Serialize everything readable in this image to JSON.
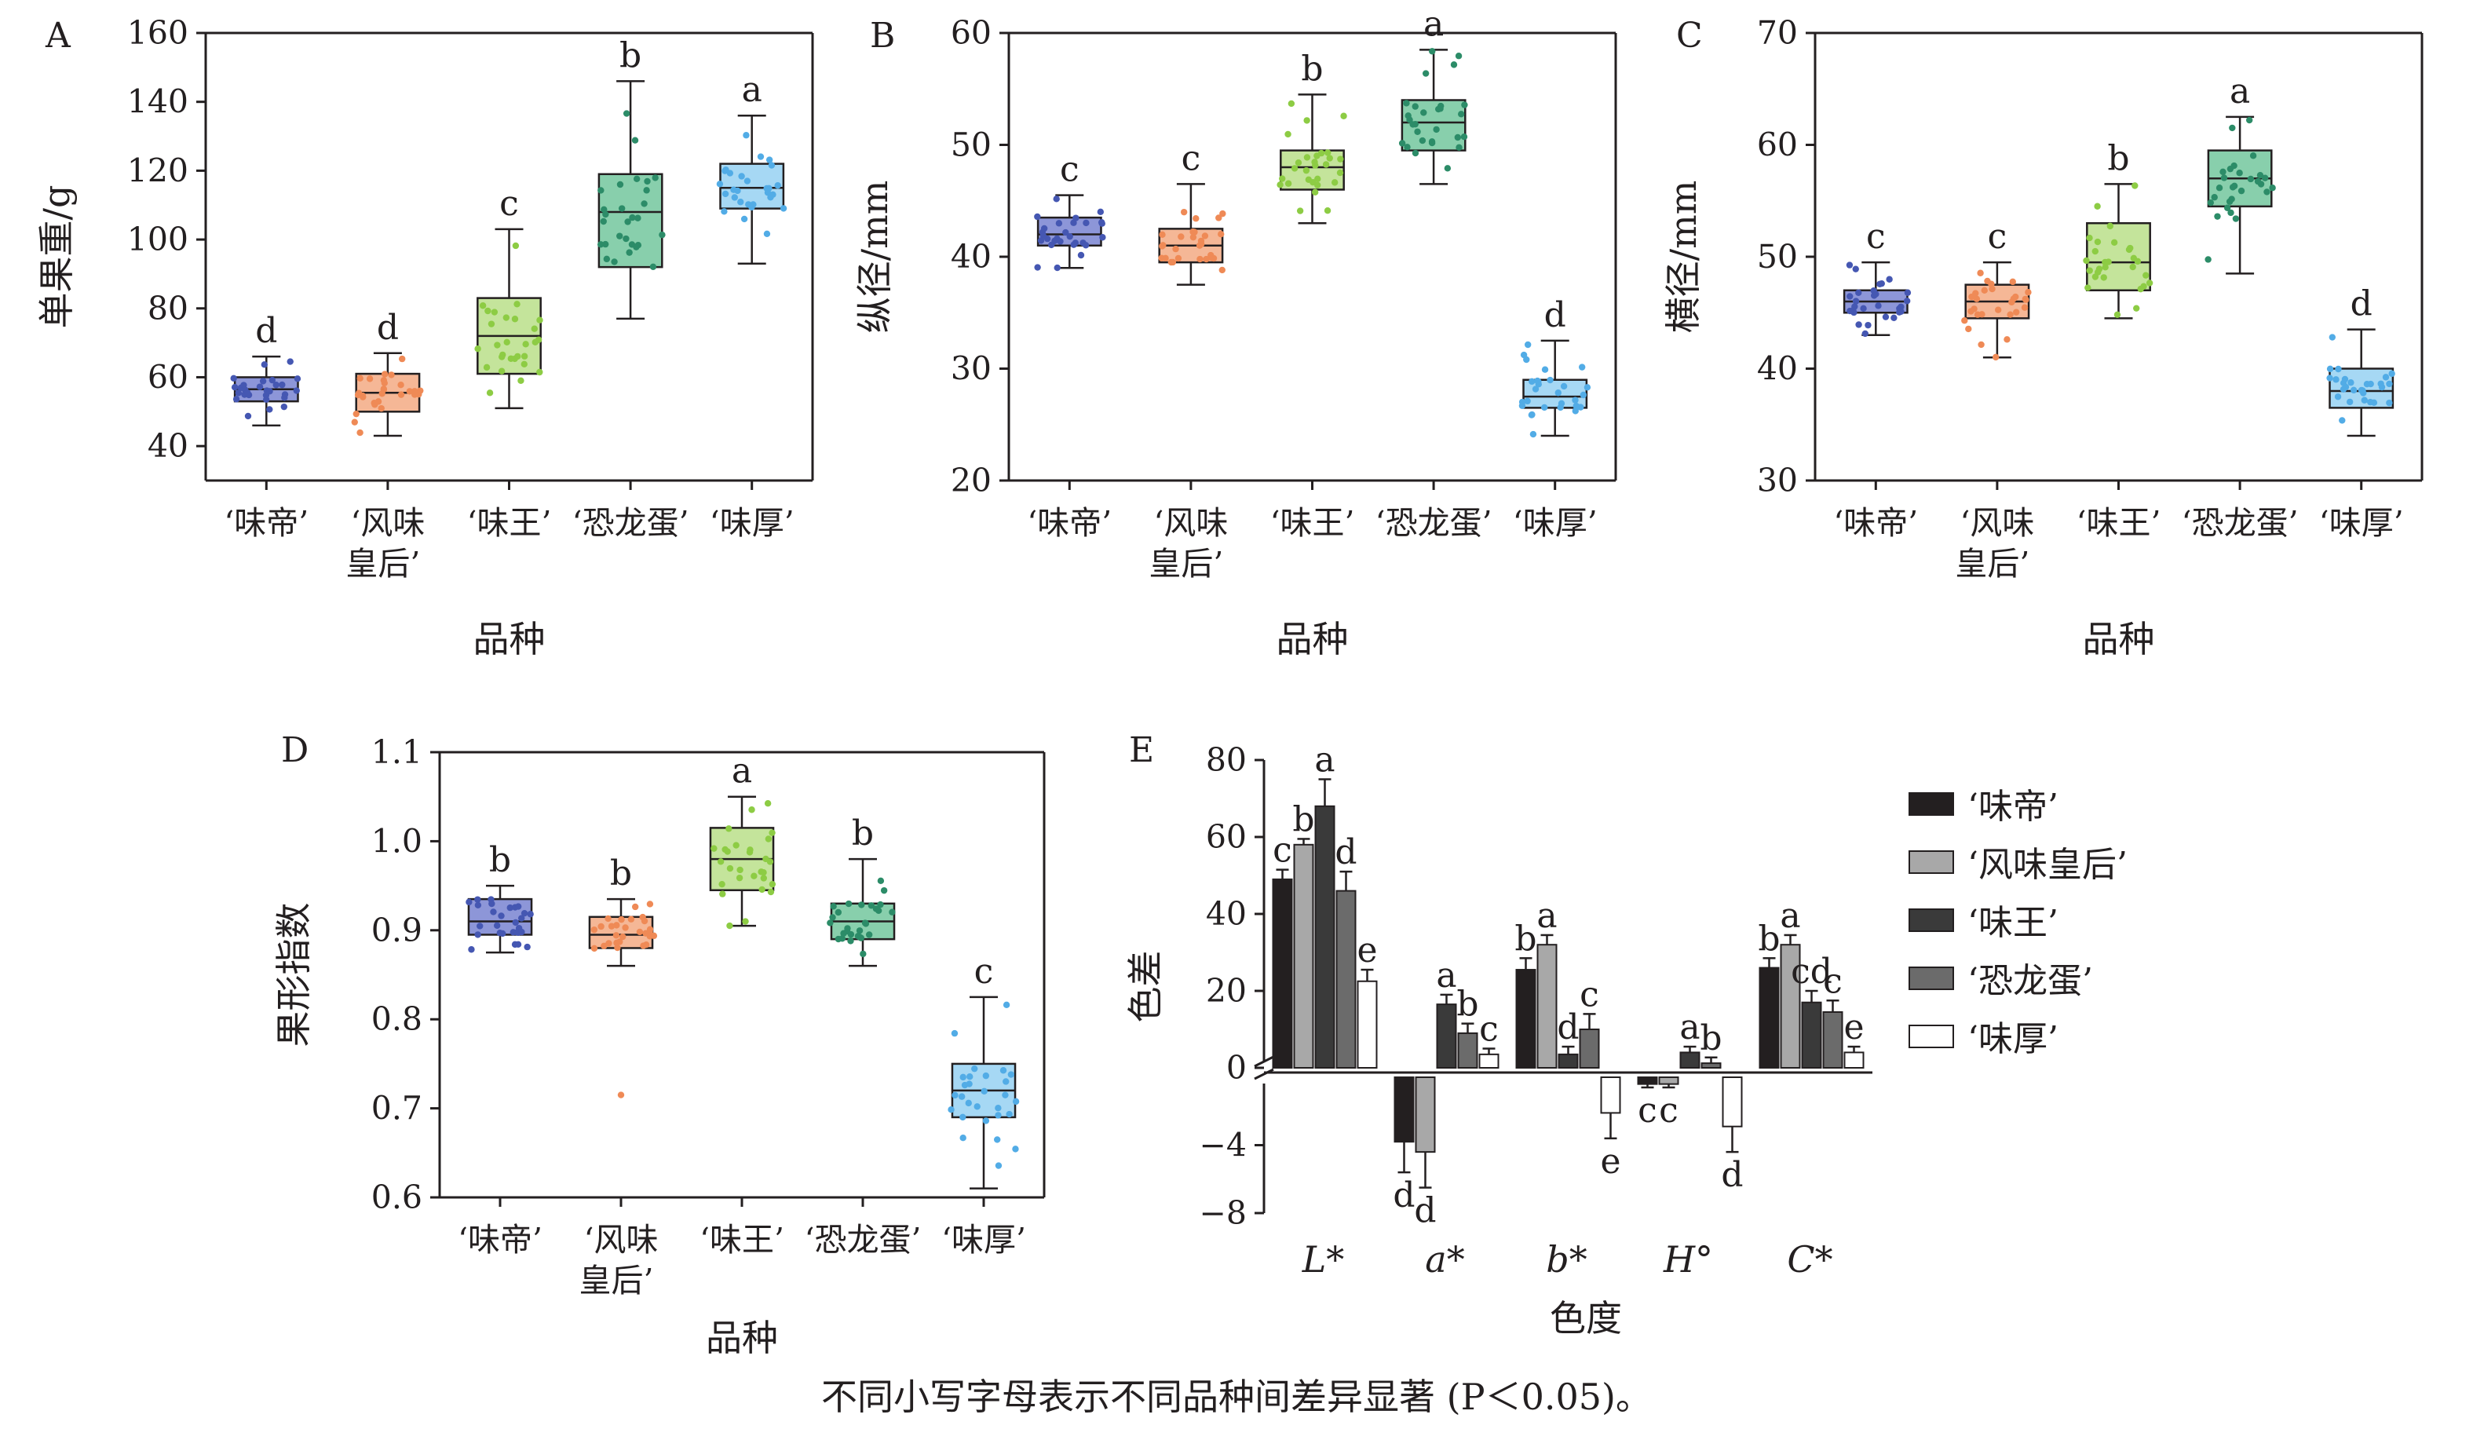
{
  "footnote": "不同小写字母表示不同品种间差异显著 (P＜0.05)。",
  "colors": {
    "box": [
      "#8d96d8",
      "#f5b796",
      "#c4e49b",
      "#88cfac",
      "#a6d8f4"
    ],
    "dot": [
      "#4557b2",
      "#ef8a56",
      "#8dcc44",
      "#2c8c68",
      "#52ace6"
    ],
    "bar": [
      "#231f20",
      "#a8a8a8",
      "#3a3a3a",
      "#6b6b6b",
      "#ffffff"
    ]
  },
  "chart_data": [
    {
      "type": "box",
      "panel": "A",
      "categories": [
        "‘味帝’",
        "‘风味\n皇后’",
        "‘味王’",
        "‘恐龙蛋’",
        "‘味厚’"
      ],
      "ylabel": "单果重/g",
      "xlabel": "品种",
      "ylim": [
        30,
        160
      ],
      "yticks": [
        40,
        60,
        80,
        100,
        120,
        140,
        160
      ],
      "boxes": [
        {
          "min": 46,
          "q1": 53,
          "median": 56.5,
          "q3": 60,
          "max": 66
        },
        {
          "min": 43,
          "q1": 50,
          "median": 55.5,
          "q3": 61,
          "max": 67
        },
        {
          "min": 51,
          "q1": 61,
          "median": 72,
          "q3": 83,
          "max": 103
        },
        {
          "min": 77,
          "q1": 92,
          "median": 108,
          "q3": 119,
          "max": 146
        },
        {
          "min": 93,
          "q1": 109,
          "median": 115,
          "q3": 122,
          "max": 136
        }
      ],
      "letters": [
        "d",
        "d",
        "c",
        "b",
        "a"
      ]
    },
    {
      "type": "box",
      "panel": "B",
      "categories": [
        "‘味帝’",
        "‘风味\n皇后’",
        "‘味王’",
        "‘恐龙蛋’",
        "‘味厚’"
      ],
      "ylabel": "纵径/mm",
      "xlabel": "品种",
      "ylim": [
        20,
        60
      ],
      "yticks": [
        20,
        30,
        40,
        50,
        60
      ],
      "boxes": [
        {
          "min": 39,
          "q1": 41,
          "median": 42,
          "q3": 43.5,
          "max": 45.5
        },
        {
          "min": 37.5,
          "q1": 39.5,
          "median": 41,
          "q3": 42.5,
          "max": 46.5
        },
        {
          "min": 43,
          "q1": 46,
          "median": 48,
          "q3": 49.5,
          "max": 54.5
        },
        {
          "min": 46.5,
          "q1": 49.5,
          "median": 52,
          "q3": 54,
          "max": 58.5
        },
        {
          "min": 24,
          "q1": 26.5,
          "median": 27.5,
          "q3": 29,
          "max": 32.5
        }
      ],
      "letters": [
        "c",
        "c",
        "b",
        "a",
        "d"
      ]
    },
    {
      "type": "box",
      "panel": "C",
      "categories": [
        "‘味帝’",
        "‘风味\n皇后’",
        "‘味王’",
        "‘恐龙蛋’",
        "‘味厚’"
      ],
      "ylabel": "横径/mm",
      "xlabel": "品种",
      "ylim": [
        30,
        70
      ],
      "yticks": [
        30,
        40,
        50,
        60,
        70
      ],
      "boxes": [
        {
          "min": 43,
          "q1": 45,
          "median": 46,
          "q3": 47,
          "max": 49.5
        },
        {
          "min": 41,
          "q1": 44.5,
          "median": 46,
          "q3": 47.5,
          "max": 49.5
        },
        {
          "min": 44.5,
          "q1": 47,
          "median": 49.5,
          "q3": 53,
          "max": 56.5
        },
        {
          "min": 48.5,
          "q1": 54.5,
          "median": 57,
          "q3": 59.5,
          "max": 62.5
        },
        {
          "min": 34,
          "q1": 36.5,
          "median": 38,
          "q3": 40,
          "max": 43.5
        }
      ],
      "letters": [
        "c",
        "c",
        "b",
        "a",
        "d"
      ]
    },
    {
      "type": "box",
      "panel": "D",
      "categories": [
        "‘味帝’",
        "‘风味\n皇后’",
        "‘味王’",
        "‘恐龙蛋’",
        "‘味厚’"
      ],
      "ylabel": "果形指数",
      "xlabel": "品种",
      "ylim": [
        0.6,
        1.1
      ],
      "yticks": [
        0.6,
        0.7,
        0.8,
        0.9,
        1.0,
        1.1
      ],
      "ytick_labels": [
        "0.6",
        "0.7",
        "0.8",
        "0.9",
        "1.0",
        "1.1"
      ],
      "boxes": [
        {
          "min": 0.875,
          "q1": 0.895,
          "median": 0.91,
          "q3": 0.935,
          "max": 0.95
        },
        {
          "min": 0.86,
          "q1": 0.88,
          "median": 0.895,
          "q3": 0.915,
          "max": 0.935
        },
        {
          "min": 0.905,
          "q1": 0.945,
          "median": 0.98,
          "q3": 1.015,
          "max": 1.05
        },
        {
          "min": 0.86,
          "q1": 0.89,
          "median": 0.91,
          "q3": 0.93,
          "max": 0.98
        },
        {
          "min": 0.61,
          "q1": 0.69,
          "median": 0.72,
          "q3": 0.75,
          "max": 0.825
        }
      ],
      "outliers": [
        {
          "index": 1,
          "value": 0.715
        }
      ],
      "letters": [
        "b",
        "b",
        "a",
        "b",
        "c"
      ]
    },
    {
      "type": "bar",
      "panel": "E",
      "groups": [
        "L*",
        "a*",
        "b*",
        "H°",
        "C*"
      ],
      "series": [
        {
          "name": "‘味帝’",
          "values": [
            49,
            -3.8,
            25.5,
            -0.4,
            26
          ],
          "errors": [
            2.5,
            1.8,
            3,
            0.2,
            2.5
          ],
          "letters": [
            "c",
            "d",
            "b",
            "c",
            "b"
          ]
        },
        {
          "name": "‘风味皇后’",
          "values": [
            58,
            -4.4,
            32,
            -0.4,
            32
          ],
          "errors": [
            1.5,
            2.1,
            2.5,
            0.2,
            2.5
          ],
          "letters": [
            "b",
            "d",
            "a",
            "c",
            "a"
          ]
        },
        {
          "name": "‘味王’",
          "values": [
            68,
            16.5,
            3.5,
            4,
            17
          ],
          "errors": [
            7,
            2.5,
            2,
            1.5,
            3
          ],
          "letters": [
            "a",
            "a",
            "d",
            "a",
            "cd"
          ]
        },
        {
          "name": "‘恐龙蛋’",
          "values": [
            46,
            9,
            10,
            1.2,
            14.5
          ],
          "errors": [
            5,
            2.5,
            4,
            1.5,
            3
          ],
          "letters": [
            "d",
            "b",
            "c",
            "b",
            "c"
          ]
        },
        {
          "name": "‘味厚’",
          "values": [
            22.5,
            3.5,
            -2.1,
            -2.9,
            4
          ],
          "errors": [
            3,
            1.5,
            1.5,
            1.5,
            1.5
          ],
          "letters": [
            "e",
            "c",
            "e",
            "d",
            "e"
          ]
        }
      ],
      "ylabel": "色差",
      "xlabel": "色度",
      "yticks": [
        -8,
        -4,
        0,
        20,
        40,
        60,
        80
      ],
      "ytick_labels": [
        "−8",
        "−4",
        "0",
        "20",
        "40",
        "60",
        "80"
      ],
      "axis_break": true
    }
  ]
}
